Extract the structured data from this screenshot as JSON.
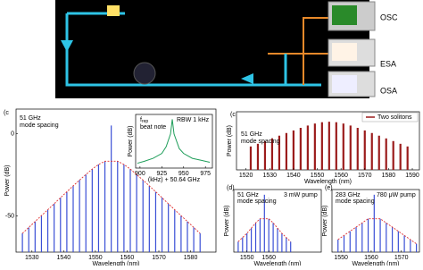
{
  "diagram": {
    "instruments": [
      "OSC",
      "ESA",
      "OSA"
    ]
  },
  "chart_data": [
    {
      "type": "bar",
      "panel_label": "(c",
      "annotations": [
        "51 GHz",
        "mode spacing"
      ],
      "x_label": "Wavelength (nm)",
      "y_label": "Power (dB)",
      "color": "#3a4fd6",
      "envelope_color": "#e03030",
      "x": [
        1527,
        1529,
        1531,
        1533,
        1535,
        1537,
        1539,
        1541,
        1543,
        1545,
        1547,
        1549,
        1551,
        1553,
        1555,
        1557,
        1559,
        1561,
        1563,
        1565,
        1567,
        1569,
        1571,
        1573,
        1575,
        1577,
        1579,
        1581,
        1583
      ],
      "values": [
        -60.6,
        -57.0,
        -53.4,
        -49.8,
        -46.2,
        -42.6,
        -38.9,
        -35.3,
        -31.7,
        -28.2,
        -24.8,
        -21.5,
        -18.7,
        -16.7,
        5,
        -16.7,
        -18.7,
        -21.5,
        -24.8,
        -28.2,
        -31.7,
        -35.3,
        -38.9,
        -42.6,
        -46.2,
        -49.8,
        -53.4,
        -57.0,
        -60.6
      ],
      "xlim": [
        1525,
        1588
      ],
      "xticks": [
        1530,
        1540,
        1550,
        1560,
        1570,
        1580
      ],
      "ylim": [
        -72,
        15
      ],
      "yticks": [
        0,
        -50
      ]
    },
    {
      "type": "line",
      "annotations": [
        "f",
        "rep",
        "beat note",
        "RBW 1 kHz"
      ],
      "x_label": "(kHz) + 50.64 GHz",
      "y_label": "Power (dB)",
      "color": "#1f9e5a",
      "x": [
        897,
        905,
        915,
        925,
        930,
        935,
        937,
        939,
        945,
        950,
        960,
        970,
        980
      ],
      "values": [
        -45,
        -43,
        -40,
        -35,
        -28,
        -15,
        0,
        -15,
        -30,
        -35,
        -40,
        -42,
        -44
      ],
      "xlim": [
        895,
        983
      ],
      "xticks": [
        900,
        925,
        950,
        975
      ],
      "ylim": [
        -50,
        5
      ]
    },
    {
      "type": "bar",
      "panel_label": "(c",
      "annotations": [
        "51 GHz",
        "mode spacing"
      ],
      "x_label": "Wavelength (nm)",
      "y_label": "Power (dB)",
      "x": [
        1522,
        1525,
        1528,
        1531,
        1534,
        1537,
        1540,
        1543,
        1546,
        1549,
        1552,
        1555,
        1558,
        1561,
        1564,
        1567,
        1570,
        1573,
        1576,
        1579,
        1582,
        1585,
        1588
      ],
      "series": [
        {
          "name": "Two solitons",
          "color": "#9b1c1c",
          "values": [
            -41.8,
            -38.6,
            -35.3,
            -32.1,
            -28.8,
            -25.6,
            -22.5,
            -19.4,
            -16.6,
            -14.2,
            -12.6,
            -12,
            -12.6,
            -14.2,
            -16.6,
            -19.4,
            -22.5,
            -25.6,
            -28.8,
            -32.1,
            -35.3,
            -38.6,
            -41.8
          ]
        }
      ],
      "xlim": [
        1516,
        1593
      ],
      "xticks": [
        1520,
        1530,
        1540,
        1550,
        1560,
        1570,
        1580,
        1590
      ],
      "ylim": [
        -70,
        0
      ],
      "legend": "upper right"
    },
    {
      "type": "bar",
      "panel_label": "(d)",
      "annotations": [
        "51 GHz",
        "mode spacing",
        "3 mW pump"
      ],
      "x_label": "Wavelength (nm)",
      "y_label": "Power (dB)",
      "color": "#3a4fd6",
      "envelope_color": "#e03030",
      "x": [
        1546,
        1548,
        1550,
        1552,
        1554,
        1556,
        1558,
        1560,
        1562,
        1564,
        1566,
        1568,
        1570
      ],
      "values": [
        -50,
        -46,
        -42,
        -37,
        -32,
        -28,
        -5,
        -28,
        -32,
        -37,
        -42,
        -46,
        -50
      ],
      "xlim": [
        1544,
        1584
      ],
      "xticks": [
        1550,
        1560
      ],
      "ylim": [
        -60,
        0
      ]
    },
    {
      "type": "bar",
      "panel_label": "(e)",
      "annotations": [
        "283 GHz",
        "mode spacing",
        "780 μW pump"
      ],
      "x_label": "Wavelength (nm)",
      "y_label": "Power (dB)",
      "color": "#3a4fd6",
      "envelope_color": "#e03030",
      "x": [
        1549,
        1551,
        1553,
        1555,
        1557,
        1559,
        1561,
        1563,
        1565,
        1567,
        1569,
        1571,
        1573,
        1575
      ],
      "values": [
        -48,
        -44,
        -40,
        -36,
        -32,
        -28,
        -5,
        -28,
        -32,
        -36,
        -40,
        -44,
        -48,
        -52
      ],
      "xlim": [
        1547,
        1576
      ],
      "xticks": [
        1550,
        1560,
        1570
      ],
      "ylim": [
        -60,
        0
      ]
    }
  ]
}
